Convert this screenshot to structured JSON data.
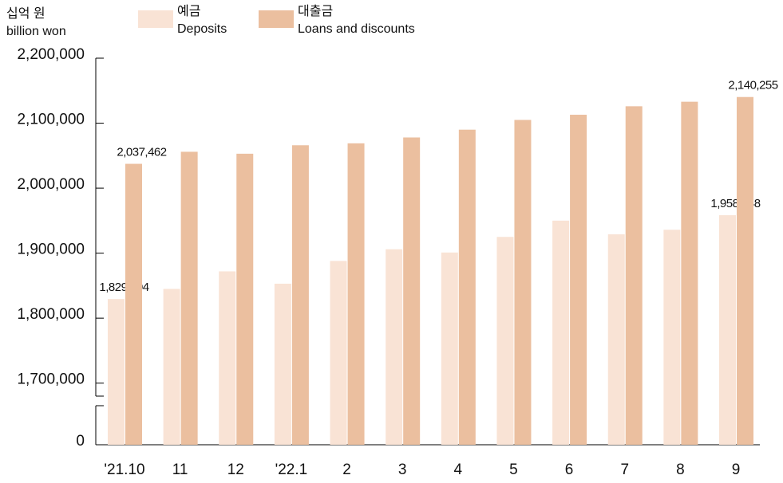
{
  "chart_data": {
    "type": "bar",
    "y_label": "십억 원",
    "y_label_en": "billion won",
    "categories": [
      "'21.10",
      "11",
      "12",
      "'22.1",
      "2",
      "3",
      "4",
      "5",
      "6",
      "7",
      "8",
      "9"
    ],
    "series": [
      {
        "name": "예금",
        "name_en": "Deposits",
        "color": "#f9e3d5",
        "values": [
          1829404,
          1845000,
          1872000,
          1853000,
          1888000,
          1906000,
          1901000,
          1925000,
          1950000,
          1929000,
          1936000,
          1958348
        ],
        "value_labels": [
          "1,829,404",
          null,
          null,
          null,
          null,
          null,
          null,
          null,
          null,
          null,
          null,
          "1,958,348"
        ]
      },
      {
        "name": "대출금",
        "name_en": "Loans and discounts",
        "color": "#ebbf9f",
        "values": [
          2037462,
          2056000,
          2053000,
          2066000,
          2069000,
          2078000,
          2090000,
          2105000,
          2113000,
          2126000,
          2133000,
          2140255
        ],
        "value_labels": [
          "2,037,462",
          null,
          null,
          null,
          null,
          null,
          null,
          null,
          null,
          null,
          null,
          "2,140,255"
        ]
      }
    ],
    "ylim": [
      1680000,
      2200000
    ],
    "axis_break": true,
    "yticks": [
      0,
      {
        "value": 1700000,
        "label": "1,700,000"
      },
      {
        "value": 1800000,
        "label": "1,800,000"
      },
      {
        "value": 1900000,
        "label": "1,900,000"
      },
      {
        "value": 2000000,
        "label": "2,000,000"
      },
      {
        "value": 2100000,
        "label": "2,100,000"
      },
      {
        "value": 2200000,
        "label": "2,200,000"
      }
    ]
  }
}
